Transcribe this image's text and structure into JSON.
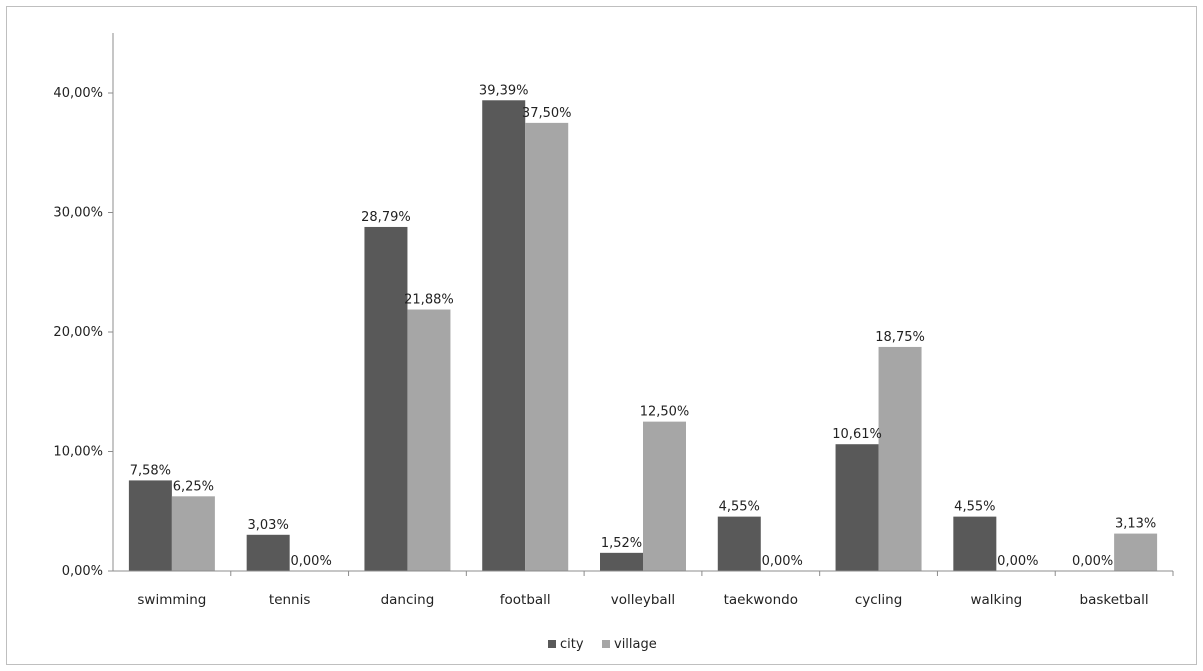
{
  "chart_data": {
    "type": "bar",
    "categories": [
      "swimming",
      "tennis",
      "dancing",
      "football",
      "volleyball",
      "taekwondo",
      "cycling",
      "walking",
      "basketball"
    ],
    "series": [
      {
        "name": "city",
        "color": "#595959",
        "values": [
          7.58,
          3.03,
          28.79,
          39.39,
          1.52,
          4.55,
          10.61,
          4.55,
          0.0
        ],
        "labels": [
          "7,58%",
          "3,03%",
          "28,79%",
          "39,39%",
          "1,52%",
          "4,55%",
          "10,61%",
          "4,55%",
          "0,00%"
        ]
      },
      {
        "name": "village",
        "color": "#a6a6a6",
        "values": [
          6.25,
          0.0,
          21.88,
          37.5,
          12.5,
          0.0,
          18.75,
          0.0,
          3.13
        ],
        "labels": [
          "6,25%",
          "0,00%",
          "21,88%",
          "37,50%",
          "12,50%",
          "0,00%",
          "18,75%",
          "0,00%",
          "3,13%"
        ]
      }
    ],
    "y_ticks": [
      0,
      10,
      20,
      30,
      40
    ],
    "y_tick_labels": [
      "0,00%",
      "10,00%",
      "20,00%",
      "30,00%",
      "40,00%"
    ],
    "ylim": [
      0,
      40
    ],
    "title": "",
    "xlabel": "",
    "ylabel": "",
    "grid": false,
    "legend_position": "bottom"
  }
}
